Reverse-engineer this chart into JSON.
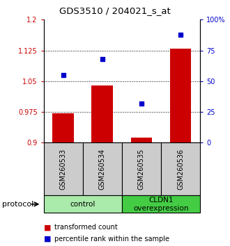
{
  "title": "GDS3510 / 204021_s_at",
  "samples": [
    "GSM260533",
    "GSM260534",
    "GSM260535",
    "GSM260536"
  ],
  "bar_values": [
    0.972,
    1.04,
    0.912,
    1.13
  ],
  "scatter_values": [
    55,
    68,
    32,
    88
  ],
  "bar_bottom": 0.9,
  "ylim_left": [
    0.9,
    1.2
  ],
  "ylim_right": [
    0,
    100
  ],
  "yticks_left": [
    0.9,
    0.975,
    1.05,
    1.125,
    1.2
  ],
  "ytick_labels_left": [
    "0.9",
    "0.975",
    "1.05",
    "1.125",
    "1.2"
  ],
  "yticks_right": [
    0,
    25,
    50,
    75,
    100
  ],
  "ytick_labels_right": [
    "0",
    "25",
    "50",
    "75",
    "100%"
  ],
  "bar_color": "#cc0000",
  "scatter_color": "#0000cc",
  "groups": [
    {
      "label": "control",
      "indices": [
        0,
        1
      ],
      "color": "#aaeaaa"
    },
    {
      "label": "CLDN1\noverexpression",
      "indices": [
        2,
        3
      ],
      "color": "#44cc44"
    }
  ],
  "protocol_label": "protocol",
  "legend_bar_label": "transformed count",
  "legend_scatter_label": "percentile rank within the sample",
  "left_axis_color": "#cc0000",
  "right_axis_color": "#0000cc",
  "sample_box_color": "#cccccc"
}
